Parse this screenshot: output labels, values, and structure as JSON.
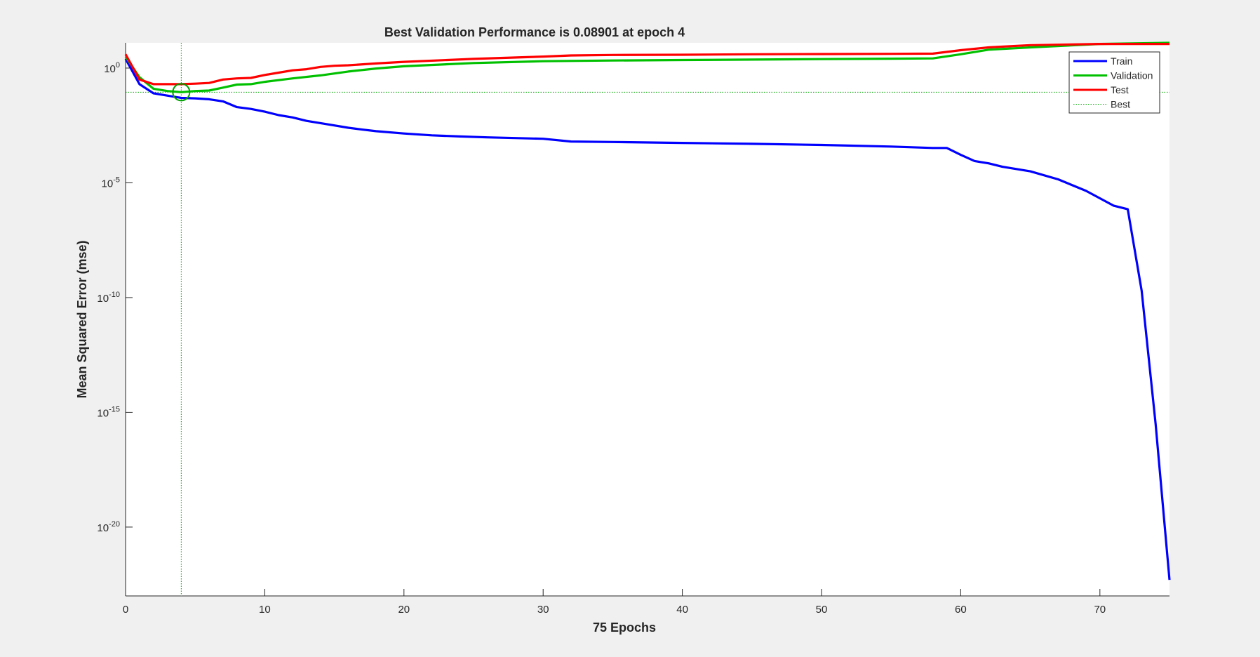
{
  "chart_data": {
    "type": "line",
    "title": "Best Validation Performance is 0.08901 at epoch 4",
    "xlabel": "75 Epochs",
    "ylabel": "Mean Squared Error  (mse)",
    "xlim": [
      0,
      75
    ],
    "ylim_log10": [
      -23,
      1.1
    ],
    "y_scale": "log",
    "grid": false,
    "legend_position": "top-right",
    "x_ticks": [
      {
        "value": 0,
        "label": "0"
      },
      {
        "value": 10,
        "label": "10"
      },
      {
        "value": 20,
        "label": "20"
      },
      {
        "value": 30,
        "label": "30"
      },
      {
        "value": 40,
        "label": "40"
      },
      {
        "value": 50,
        "label": "50"
      },
      {
        "value": 60,
        "label": "60"
      },
      {
        "value": 70,
        "label": "70"
      }
    ],
    "y_ticks": [
      {
        "exp": 0,
        "base": "10",
        "sup": "0"
      },
      {
        "exp": -5,
        "base": "10",
        "sup": "-5"
      },
      {
        "exp": -10,
        "base": "10",
        "sup": "-10"
      },
      {
        "exp": -15,
        "base": "10",
        "sup": "-15"
      },
      {
        "exp": -20,
        "base": "10",
        "sup": "-20"
      }
    ],
    "series": [
      {
        "name": "Train",
        "color": "#0000ff",
        "x": [
          0,
          1,
          2,
          3,
          4,
          5,
          6,
          7,
          8,
          9,
          10,
          11,
          12,
          13,
          14,
          15,
          16,
          17,
          18,
          20,
          22,
          24,
          26,
          28,
          30,
          32,
          35,
          40,
          45,
          50,
          55,
          58,
          59,
          60,
          61,
          62,
          63,
          65,
          67,
          69,
          71,
          72,
          73,
          74,
          75
        ],
        "y_log10": [
          0.4,
          -0.7,
          -1.1,
          -1.2,
          -1.3,
          -1.32,
          -1.36,
          -1.45,
          -1.7,
          -1.78,
          -1.9,
          -2.05,
          -2.15,
          -2.3,
          -2.4,
          -2.5,
          -2.6,
          -2.68,
          -2.75,
          -2.85,
          -2.93,
          -2.98,
          -3.02,
          -3.05,
          -3.08,
          -3.2,
          -3.22,
          -3.26,
          -3.3,
          -3.35,
          -3.42,
          -3.48,
          -3.48,
          -3.78,
          -4.05,
          -4.15,
          -4.3,
          -4.5,
          -4.85,
          -5.35,
          -6.0,
          -6.15,
          -9.7,
          -15.5,
          -22.3
        ]
      },
      {
        "name": "Validation",
        "color": "#00c000",
        "x": [
          0,
          1,
          2,
          3,
          4,
          5,
          6,
          7,
          8,
          9,
          10,
          12,
          14,
          16,
          18,
          20,
          25,
          30,
          35,
          40,
          45,
          50,
          55,
          58,
          60,
          62,
          65,
          70,
          75
        ],
        "y_log10": [
          0.5,
          -0.4,
          -0.9,
          -1.0,
          -1.05,
          -1.0,
          -0.98,
          -0.85,
          -0.72,
          -0.7,
          -0.6,
          -0.45,
          -0.32,
          -0.15,
          -0.02,
          0.08,
          0.22,
          0.3,
          0.33,
          0.35,
          0.37,
          0.39,
          0.41,
          0.42,
          0.6,
          0.8,
          0.9,
          1.05,
          1.1
        ]
      },
      {
        "name": "Test",
        "color": "#ff0000",
        "x": [
          0,
          1,
          2,
          3,
          4,
          5,
          6,
          7,
          8,
          9,
          10,
          11,
          12,
          13,
          14,
          15,
          16,
          18,
          20,
          25,
          30,
          32,
          35,
          40,
          45,
          50,
          55,
          58,
          60,
          62,
          65,
          70,
          75
        ],
        "y_log10": [
          0.6,
          -0.5,
          -0.7,
          -0.7,
          -0.7,
          -0.68,
          -0.65,
          -0.5,
          -0.45,
          -0.43,
          -0.3,
          -0.2,
          -0.1,
          -0.05,
          0.05,
          0.1,
          0.12,
          0.2,
          0.27,
          0.4,
          0.5,
          0.55,
          0.57,
          0.58,
          0.6,
          0.61,
          0.62,
          0.63,
          0.78,
          0.9,
          1.0,
          1.05,
          1.05
        ]
      }
    ],
    "best": {
      "name": "Best",
      "epoch": 4,
      "value": 0.08901,
      "color": "#00a000"
    }
  }
}
